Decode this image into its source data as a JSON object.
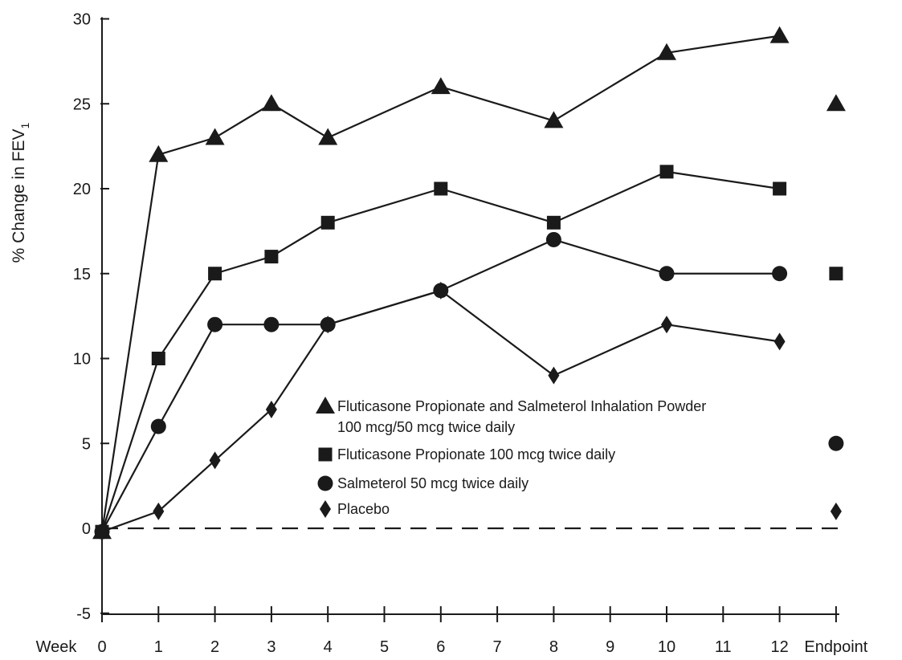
{
  "chart_data": {
    "type": "line",
    "ylabel": "% Change in FEV",
    "ylabel_subscript": "1",
    "xlabel": "Week",
    "ylim": [
      -5,
      30
    ],
    "yticks": [
      -5,
      0,
      5,
      10,
      15,
      20,
      25,
      30
    ],
    "xticks": [
      {
        "value": 0,
        "label": "0"
      },
      {
        "value": 1,
        "label": "1"
      },
      {
        "value": 2,
        "label": "2"
      },
      {
        "value": 3,
        "label": "3"
      },
      {
        "value": 4,
        "label": "4"
      },
      {
        "value": 5,
        "label": "5"
      },
      {
        "value": 6,
        "label": "6"
      },
      {
        "value": 7,
        "label": "7"
      },
      {
        "value": 8,
        "label": "8"
      },
      {
        "value": 9,
        "label": "9"
      },
      {
        "value": 10,
        "label": "10"
      },
      {
        "value": 11,
        "label": "11"
      },
      {
        "value": 12,
        "label": "12"
      },
      {
        "value": 13,
        "label": "Endpoint"
      }
    ],
    "reference_line": {
      "y": 0,
      "style": "dashed"
    },
    "legend_position": "center",
    "series": [
      {
        "name": "Fluticasone Propionate and Salmeterol Inhalation Powder",
        "name_line2": "100 mcg/50 mcg twice daily",
        "marker": "triangle",
        "x": [
          0,
          1,
          2,
          3,
          4,
          6,
          8,
          10,
          12
        ],
        "values": [
          -0.2,
          22,
          23,
          25,
          23,
          26,
          24,
          28,
          29
        ],
        "endpoint": 25
      },
      {
        "name": "Fluticasone Propionate 100 mcg twice daily",
        "marker": "square",
        "x": [
          0,
          1,
          2,
          3,
          4,
          6,
          8,
          10,
          12
        ],
        "values": [
          -0.2,
          10,
          15,
          16,
          18,
          20,
          18,
          21,
          20
        ],
        "endpoint": 15
      },
      {
        "name": "Salmeterol 50 mcg twice daily",
        "marker": "circle",
        "x": [
          0,
          1,
          2,
          3,
          4,
          6,
          8,
          10,
          12
        ],
        "values": [
          -0.2,
          6,
          12,
          12,
          12,
          14,
          17,
          15,
          15
        ],
        "endpoint": 5
      },
      {
        "name": "Placebo",
        "marker": "diamond",
        "x": [
          0,
          1,
          2,
          3,
          4,
          6,
          8,
          10,
          12
        ],
        "values": [
          -0.2,
          1,
          4,
          7,
          12,
          14,
          9,
          12,
          11
        ],
        "endpoint": 1
      }
    ]
  }
}
